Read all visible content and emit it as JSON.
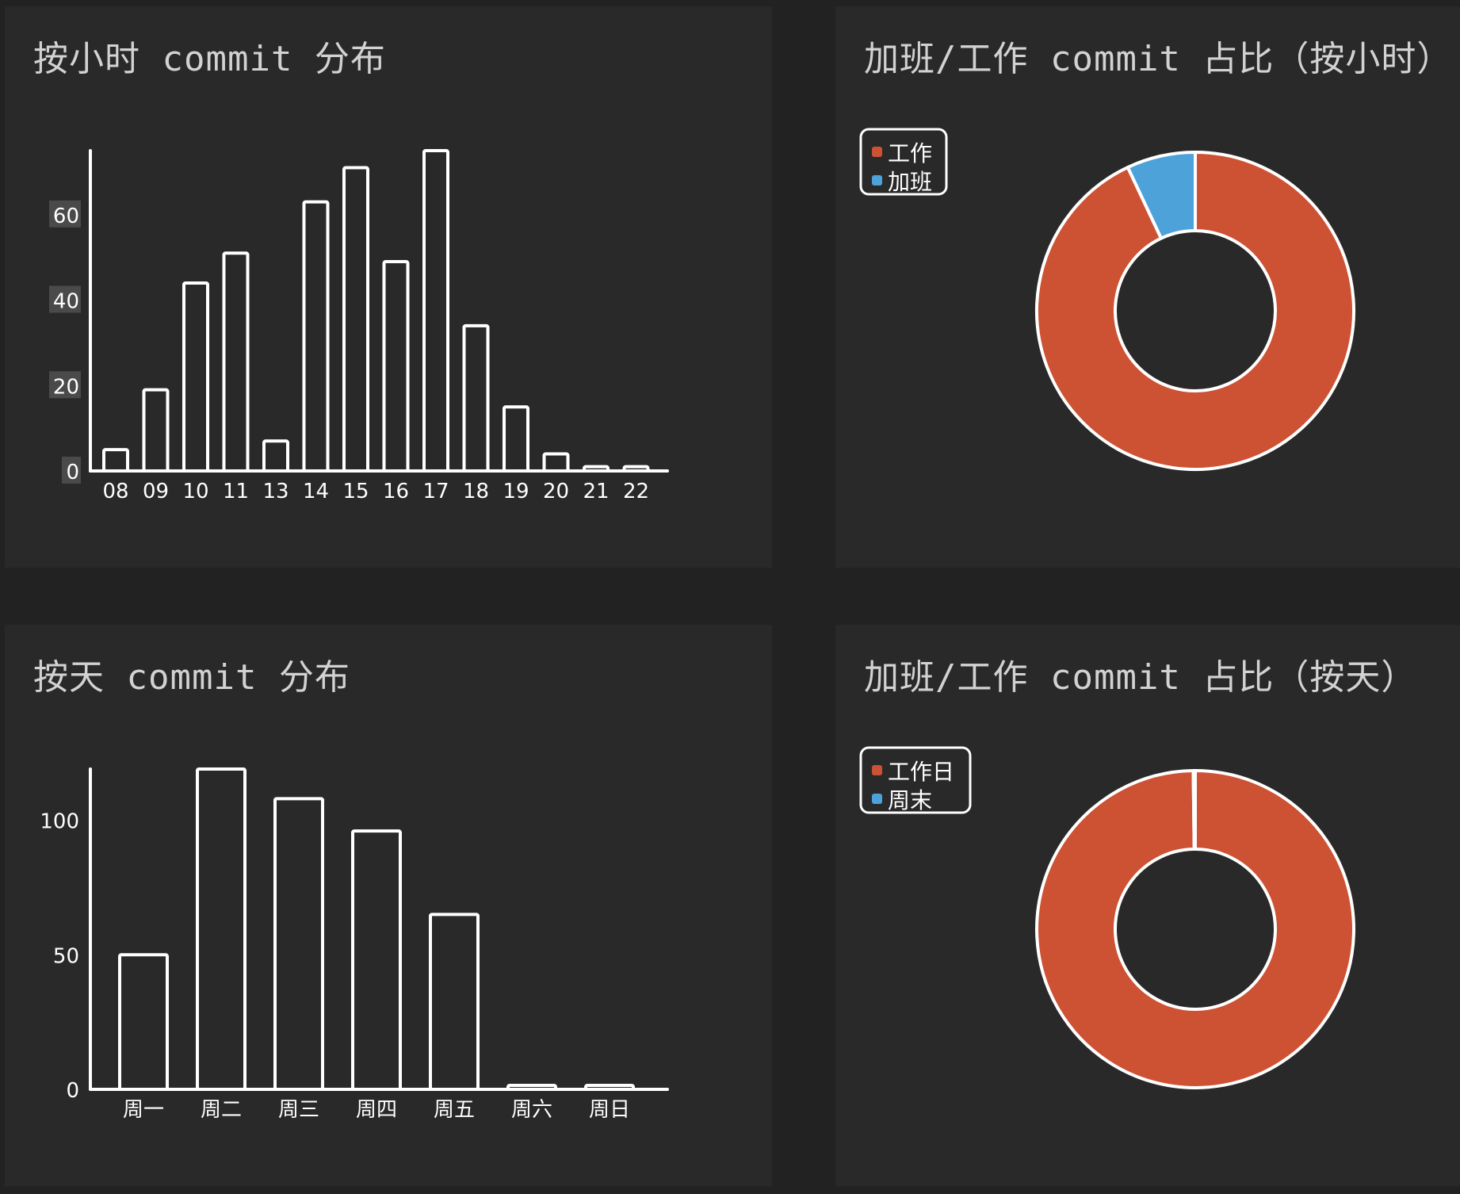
{
  "colors": {
    "background": "#222222",
    "panel": "#292929",
    "bar_stroke": "#ffffff",
    "work": "#cd5234",
    "overtime": "#4ea2da",
    "axis_label_bg": "#4a4a4a"
  },
  "panels": {
    "hour_bar": {
      "title": "按小时 commit 分布"
    },
    "hour_pie": {
      "title": "加班/工作 commit 占比（按小时）"
    },
    "day_bar": {
      "title": "按天 commit 分布"
    },
    "day_pie": {
      "title": "加班/工作 commit 占比（按天）"
    }
  },
  "chart_data": [
    {
      "id": "hour_bar",
      "type": "bar",
      "title": "按小时 commit 分布",
      "categories": [
        "08",
        "09",
        "10",
        "11",
        "13",
        "14",
        "15",
        "16",
        "17",
        "18",
        "19",
        "20",
        "21",
        "22"
      ],
      "values": [
        5,
        19,
        44,
        51,
        7,
        63,
        71,
        49,
        75,
        34,
        15,
        4,
        1,
        1
      ],
      "ylim": [
        0,
        75
      ],
      "yticks": [
        0,
        20,
        40,
        60
      ]
    },
    {
      "id": "hour_pie",
      "type": "pie",
      "title": "加班/工作 commit 占比（按小时）",
      "labels": [
        "工作",
        "加班"
      ],
      "values": [
        93,
        7
      ],
      "colors": [
        "#cd5234",
        "#4ea2da"
      ],
      "legend": "top-left"
    },
    {
      "id": "day_bar",
      "type": "bar",
      "title": "按天 commit 分布",
      "categories": [
        "周一",
        "周二",
        "周三",
        "周四",
        "周五",
        "周六",
        "周日"
      ],
      "values": [
        50,
        119,
        108,
        96,
        65,
        1,
        0
      ],
      "ylim": [
        0,
        119
      ],
      "yticks": [
        0,
        50,
        100
      ]
    },
    {
      "id": "day_pie",
      "type": "pie",
      "title": "加班/工作 commit 占比（按天）",
      "labels": [
        "工作日",
        "周末"
      ],
      "values": [
        99.8,
        0.2
      ],
      "colors": [
        "#cd5234",
        "#4ea2da"
      ],
      "legend": "top-left"
    }
  ]
}
